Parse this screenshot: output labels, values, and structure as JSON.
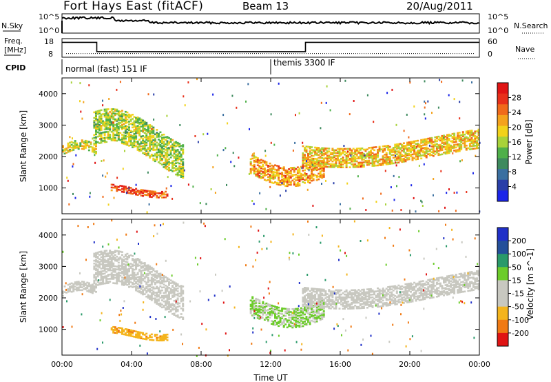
{
  "header": {
    "station": "Fort Hays East (fitACF)",
    "beam": "Beam 13",
    "date": "20/Aug/2011"
  },
  "strip_panels": {
    "noise": {
      "left_label": "N.Sky",
      "right_label": "N.Search",
      "left_ticks": [
        "10^5",
        "10^0"
      ],
      "right_ticks": [
        "10^5",
        "10^0"
      ]
    },
    "freq": {
      "left_label_1": "Freq.",
      "left_label_2": "[MHz]",
      "right_label": "Nave",
      "left_ticks": [
        "18",
        "8"
      ],
      "right_ticks": [
        "60",
        "0"
      ],
      "freq_mhz": [
        {
          "t": 0,
          "v": 16
        },
        {
          "t": 2,
          "v": 16
        },
        {
          "t": 2,
          "v": 11
        },
        {
          "t": 14,
          "v": 11
        },
        {
          "t": 14,
          "v": 16
        },
        {
          "t": 24,
          "v": 16
        }
      ],
      "nave": 12
    },
    "cpid": {
      "label": "CPID",
      "modes": [
        {
          "name": "normal (fast) 151 IF",
          "start_hr": 0
        },
        {
          "name": "themis 3300 IF",
          "start_hr": 12
        }
      ]
    }
  },
  "colors": {
    "power_scale": [
      "#1a24e8",
      "#2a3fa8",
      "#3a6fa0",
      "#3e8a5e",
      "#4fb04a",
      "#a8d23a",
      "#f2d21a",
      "#f4a21c",
      "#f06a1a",
      "#e8301a",
      "#e01414"
    ],
    "velocity_scale": [
      "#e01414",
      "#f07a14",
      "#f4b41c",
      "#c8c8c0",
      "#c8c8c0",
      "#6ccc2a",
      "#2a9a6a",
      "#24509a",
      "#2030c8"
    ]
  },
  "chart_data": [
    {
      "type": "heatmap",
      "quantity": "Power",
      "ylabel": "Slant Range [km]",
      "xlabel": "Time UT",
      "x_ticks": [
        "00:00",
        "04:00",
        "08:00",
        "12:00",
        "16:00",
        "20:00",
        "00:00"
      ],
      "y_ticks": [
        1000,
        2000,
        3000,
        4000
      ],
      "xlim_hours": [
        0,
        24
      ],
      "ylim_km": [
        180,
        4500
      ],
      "colorbar": {
        "label": "Power [dB]",
        "range": [
          0,
          32
        ],
        "ticks": [
          4,
          8,
          12,
          16,
          20,
          24,
          28
        ]
      },
      "echo_regions": [
        {
          "t0": 0.0,
          "t1": 2.0,
          "r0": 1900,
          "r1": 2500,
          "value": 18
        },
        {
          "t0": 1.8,
          "t1": 6.9,
          "r0": 1300,
          "r1": 3400,
          "value": 16
        },
        {
          "t0": 2.8,
          "t1": 6.0,
          "r0": 700,
          "r1": 1100,
          "value": 26
        },
        {
          "t0": 10.8,
          "t1": 15.0,
          "r0": 1100,
          "r1": 2300,
          "value": 22
        },
        {
          "t0": 13.8,
          "t1": 24.0,
          "r0": 1700,
          "r1": 2900,
          "value": 20
        }
      ]
    },
    {
      "type": "heatmap",
      "quantity": "Velocity",
      "ylabel": "Slant Range [km]",
      "xlabel": "Time UT",
      "x_ticks": [
        "00:00",
        "04:00",
        "08:00",
        "12:00",
        "16:00",
        "20:00",
        "00:00"
      ],
      "y_ticks": [
        1000,
        2000,
        3000,
        4000
      ],
      "xlim_hours": [
        0,
        24
      ],
      "ylim_km": [
        180,
        4500
      ],
      "colorbar": {
        "label": "Velocity [m s^-1]",
        "ticks": [
          "200",
          "100",
          "50",
          "15",
          "-15",
          "-50",
          "-100",
          "-200"
        ]
      },
      "echo_regions": [
        {
          "t0": 0.0,
          "t1": 2.0,
          "r0": 1900,
          "r1": 2500,
          "value": 0
        },
        {
          "t0": 1.8,
          "t1": 6.9,
          "r0": 1300,
          "r1": 3400,
          "value": 0
        },
        {
          "t0": 2.8,
          "t1": 6.0,
          "r0": 650,
          "r1": 1100,
          "value": -60
        },
        {
          "t0": 10.8,
          "t1": 15.0,
          "r0": 1100,
          "r1": 2300,
          "value": 30
        },
        {
          "t0": 13.8,
          "t1": 24.0,
          "r0": 1700,
          "r1": 2900,
          "value": 0
        }
      ]
    }
  ]
}
